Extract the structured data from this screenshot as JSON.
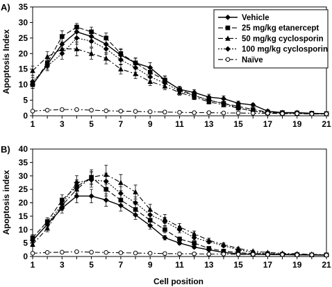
{
  "chart_data": [
    {
      "type": "line",
      "panel_label": "A)",
      "ylabel": "Apoptosis Index",
      "xlabel": "",
      "ylim": [
        0,
        35
      ],
      "yticks": [
        0,
        5,
        10,
        15,
        20,
        25,
        30,
        35
      ],
      "xlim": [
        1,
        21
      ],
      "xticks": [
        1,
        3,
        5,
        7,
        9,
        11,
        13,
        15,
        17,
        19,
        21
      ],
      "x": [
        1,
        2,
        3,
        4,
        5,
        6,
        7,
        8,
        9,
        10,
        11,
        12,
        13,
        14,
        15,
        16,
        17,
        18,
        19,
        20,
        21
      ],
      "legend_position": "top-right",
      "series": [
        {
          "name": "Vehicle",
          "style": "solid",
          "marker": "diamond-filled",
          "values": [
            10,
            16.5,
            23,
            27,
            25.5,
            23,
            19.5,
            17,
            15.5,
            11.5,
            8.5,
            7.5,
            6,
            5.5,
            4,
            3.5,
            1.5,
            1,
            1,
            0.8,
            0.7
          ],
          "errors": [
            1.2,
            1.5,
            1.8,
            2.2,
            2,
            1.8,
            1.8,
            1.6,
            1.6,
            1.3,
            1,
            0.9,
            0.9,
            0.9,
            0.7,
            0.5,
            0.4,
            0.3,
            0.3,
            0.2,
            0.2
          ]
        },
        {
          "name": "25 mg/kg etanercept",
          "style": "dash",
          "marker": "square-filled",
          "values": [
            10,
            17,
            25.5,
            28.5,
            27,
            25,
            20,
            17,
            14,
            11.5,
            8.5,
            6.5,
            5,
            4,
            3,
            2,
            1.2,
            1,
            0.9,
            0.8,
            0.7
          ],
          "errors": [
            1.2,
            1.5,
            1.8,
            1.2,
            1.5,
            1.6,
            1.6,
            1.5,
            1.4,
            1.2,
            1,
            0.8,
            0.7,
            0.6,
            0.5,
            0.4,
            0.3,
            0.3,
            0.2,
            0.2,
            0.2
          ]
        },
        {
          "name": "50 mg/kg cyclosporin",
          "style": "dashdot",
          "marker": "triangle-filled",
          "values": [
            14.5,
            19,
            21.5,
            21.5,
            20,
            18.5,
            15,
            13.5,
            11,
            9.5,
            7.5,
            6,
            4.5,
            3.5,
            2.5,
            1.5,
            1,
            0.9,
            0.8,
            0.7,
            0.6
          ],
          "errors": [
            1.5,
            1.6,
            1.8,
            2.2,
            1.8,
            1.8,
            1.6,
            1.5,
            1.3,
            1.1,
            0.9,
            0.8,
            0.7,
            0.6,
            0.5,
            0.4,
            0.3,
            0.3,
            0.2,
            0.2,
            0.2
          ]
        },
        {
          "name": "100 mg/kg cyclosporin",
          "style": "dot",
          "marker": "diamond-filled",
          "values": [
            11,
            16,
            20,
            25,
            24,
            21.5,
            18,
            15.5,
            12.5,
            10.5,
            8,
            6.5,
            5,
            4,
            2.5,
            1.5,
            1,
            0.8,
            0.8,
            0.7,
            0.6
          ],
          "errors": [
            1.3,
            1.5,
            1.8,
            2,
            1.9,
            1.7,
            1.6,
            1.5,
            1.3,
            1.2,
            1,
            0.8,
            0.7,
            0.6,
            0.5,
            0.4,
            0.3,
            0.3,
            0.2,
            0.2,
            0.2
          ]
        },
        {
          "name": "Naïve",
          "style": "dashdot",
          "marker": "circle-open",
          "values": [
            1.5,
            1.8,
            2,
            2,
            1.8,
            1.6,
            1.5,
            1.4,
            1.3,
            1.2,
            1.1,
            1,
            1,
            0.9,
            0.9,
            0.8,
            0.8,
            0.7,
            0.7,
            0.6,
            0.6
          ],
          "errors": [
            0.2,
            0.2,
            0.3,
            0.3,
            0.2,
            0.2,
            0.2,
            0.2,
            0.2,
            0.2,
            0.2,
            0.2,
            0.1,
            0.1,
            0.1,
            0.1,
            0.1,
            0.1,
            0.1,
            0.1,
            0.1
          ]
        }
      ]
    },
    {
      "type": "line",
      "panel_label": "B)",
      "ylabel": "Apoptosis index",
      "xlabel": "Cell position",
      "ylim": [
        0,
        40
      ],
      "yticks": [
        0,
        5,
        10,
        15,
        20,
        25,
        30,
        35,
        40
      ],
      "xlim": [
        1,
        21
      ],
      "xticks": [
        1,
        3,
        5,
        7,
        9,
        11,
        13,
        15,
        17,
        19,
        21
      ],
      "x": [
        1,
        2,
        3,
        4,
        5,
        6,
        7,
        8,
        9,
        10,
        11,
        12,
        13,
        14,
        15,
        16,
        17,
        18,
        19,
        20,
        21
      ],
      "series": [
        {
          "name": "Vehicle",
          "style": "solid",
          "marker": "diamond-filled",
          "values": [
            6,
            12,
            18,
            22.5,
            22.5,
            21,
            19,
            15.5,
            11.5,
            7,
            5,
            3.5,
            2.5,
            1.5,
            1,
            0.8,
            0.8,
            0.7,
            0.6,
            0.6,
            0.5
          ],
          "errors": [
            1,
            1.4,
            1.8,
            2.5,
            2.5,
            2.3,
            2.1,
            1.7,
            1.3,
            0.8,
            0.6,
            0.5,
            0.4,
            0.3,
            0.2,
            0.2,
            0.2,
            0.2,
            0.1,
            0.1,
            0.1
          ]
        },
        {
          "name": "25 mg/kg etanercept",
          "style": "dash",
          "marker": "square-filled",
          "values": [
            7,
            13,
            21,
            26,
            29.5,
            25,
            21,
            17.5,
            13.5,
            10,
            6.5,
            5,
            3,
            2,
            1.5,
            1,
            1,
            0.8,
            0.7,
            0.6,
            0.6
          ],
          "errors": [
            1.1,
            1.4,
            2,
            2.5,
            2.2,
            2.5,
            2.2,
            1.9,
            1.6,
            1.2,
            0.8,
            0.7,
            0.5,
            0.4,
            0.3,
            0.2,
            0.2,
            0.2,
            0.2,
            0.1,
            0.1
          ]
        },
        {
          "name": "50 mg/kg cyclosporin",
          "style": "dashdot",
          "marker": "triangle-filled",
          "values": [
            4.5,
            10.5,
            19,
            25,
            29.5,
            30.5,
            27.5,
            24,
            17.5,
            14,
            11,
            8.5,
            6,
            4.5,
            3,
            2,
            1.5,
            1.2,
            1,
            0.8,
            0.7
          ],
          "errors": [
            0.8,
            1.3,
            1.9,
            2.5,
            2.8,
            3.5,
            3,
            2.6,
            1.9,
            1.6,
            1.3,
            1,
            0.8,
            0.6,
            0.4,
            0.3,
            0.3,
            0.2,
            0.2,
            0.2,
            0.1
          ]
        },
        {
          "name": "100 mg/kg cyclosporin",
          "style": "dot",
          "marker": "diamond-filled",
          "values": [
            6,
            12,
            19.5,
            27.5,
            28.5,
            28,
            23.5,
            20,
            15.5,
            13,
            10,
            7,
            5.5,
            4,
            2.5,
            1.5,
            1,
            1,
            0.8,
            0.7,
            0.6
          ],
          "errors": [
            1,
            1.4,
            2,
            2.6,
            2.7,
            3,
            2.5,
            2.2,
            1.7,
            1.5,
            1.2,
            0.9,
            0.7,
            0.5,
            0.4,
            0.3,
            0.2,
            0.2,
            0.2,
            0.1,
            0.1
          ]
        },
        {
          "name": "Naïve",
          "style": "dashdot",
          "marker": "circle-open",
          "values": [
            1.2,
            1.5,
            1.6,
            1.8,
            1.6,
            1.5,
            1.4,
            1.3,
            1.2,
            1.1,
            1,
            1,
            0.9,
            0.9,
            0.8,
            0.8,
            0.7,
            0.7,
            0.6,
            0.6,
            0.5
          ],
          "errors": [
            0.2,
            0.2,
            0.2,
            0.3,
            0.2,
            0.2,
            0.2,
            0.2,
            0.2,
            0.2,
            0.1,
            0.1,
            0.1,
            0.1,
            0.1,
            0.1,
            0.1,
            0.1,
            0.1,
            0.1,
            0.1
          ]
        }
      ]
    }
  ]
}
